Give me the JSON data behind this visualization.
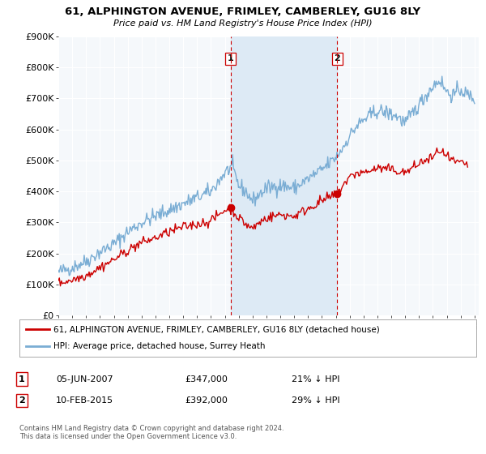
{
  "title": "61, ALPHINGTON AVENUE, FRIMLEY, CAMBERLEY, GU16 8LY",
  "subtitle": "Price paid vs. HM Land Registry's House Price Index (HPI)",
  "legend_line1": "61, ALPHINGTON AVENUE, FRIMLEY, CAMBERLEY, GU16 8LY (detached house)",
  "legend_line2": "HPI: Average price, detached house, Surrey Heath",
  "transaction1_date": "05-JUN-2007",
  "transaction1_price": "£347,000",
  "transaction1_note": "21% ↓ HPI",
  "transaction1_year": 2007.42,
  "transaction1_value": 347000,
  "transaction2_date": "10-FEB-2015",
  "transaction2_price": "£392,000",
  "transaction2_note": "29% ↓ HPI",
  "transaction2_year": 2015.11,
  "transaction2_value": 392000,
  "house_color": "#cc0000",
  "hpi_color": "#7aadd4",
  "vline_color": "#cc0000",
  "shade_color": "#ddeaf5",
  "background_color": "#ffffff",
  "plot_bg_color": "#f5f8fb",
  "grid_color": "#ffffff",
  "ylim_max": 900000,
  "xlim_start": 1995,
  "xlim_end": 2025,
  "footer": "Contains HM Land Registry data © Crown copyright and database right 2024.\nThis data is licensed under the Open Government Licence v3.0."
}
